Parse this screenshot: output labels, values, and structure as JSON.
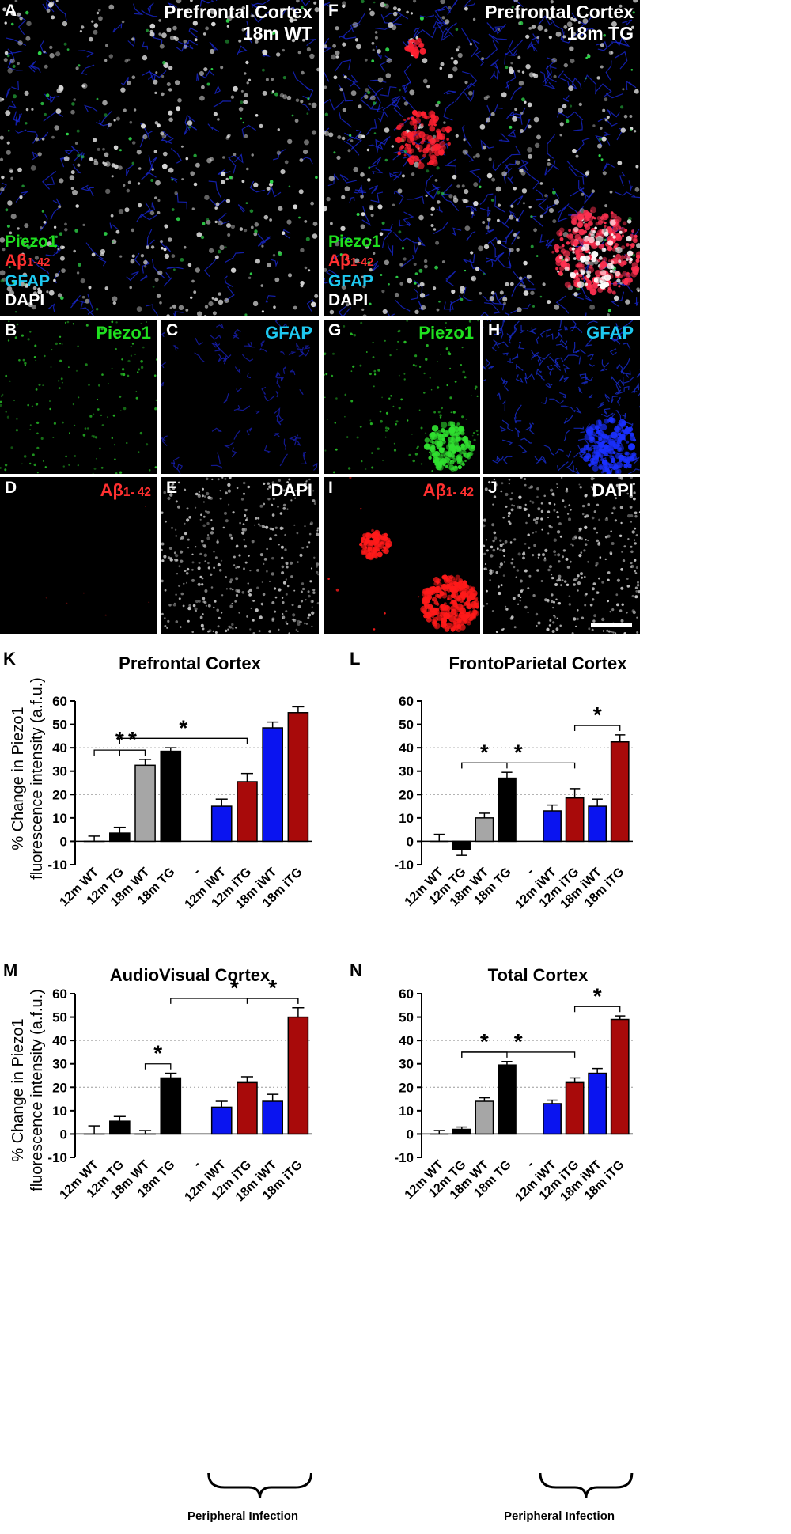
{
  "image_panels": {
    "A": {
      "label": "A",
      "title1": "Prefrontal Cortex",
      "title2": "18m WT",
      "legend": [
        "Piezo1",
        "Aβ",
        "1-42",
        "GFAP",
        "DAPI"
      ]
    },
    "F": {
      "label": "F",
      "title1": "Prefrontal Cortex",
      "title2": "18m TG",
      "legend": [
        "Piezo1",
        "Aβ",
        "1-42",
        "GFAP",
        "DAPI"
      ]
    },
    "B": {
      "label": "B",
      "channel": "Piezo1"
    },
    "C": {
      "label": "C",
      "channel": "GFAP"
    },
    "D": {
      "label": "D",
      "channel_main": "Aβ",
      "channel_sub": "1- 42"
    },
    "E": {
      "label": "E",
      "channel": "DAPI"
    },
    "G": {
      "label": "G",
      "channel": "Piezo1"
    },
    "H": {
      "label": "H",
      "channel": "GFAP"
    },
    "I": {
      "label": "I",
      "channel_main": "Aβ",
      "channel_sub": "1- 42"
    },
    "J": {
      "label": "J",
      "channel": "DAPI"
    }
  },
  "colors": {
    "wt": "#a6a6a6",
    "tg": "#000000",
    "iwt": "#0a14f0",
    "itg": "#a80a0a",
    "piezo": "#1fe01f",
    "abeta": "#ff3030",
    "gfap": "#1ec8f0",
    "dapi": "#ffffff"
  },
  "y_axis_label_line1": "% Change in Piezo1",
  "y_axis_label_line2": "fluorescence intensity (a.f.u.)",
  "peripheral_infection": "Peripheral Infection",
  "chart_data": [
    {
      "panel": "K",
      "title": "Prefrontal Cortex",
      "type": "bar",
      "categories": [
        "12m WT",
        "12m TG",
        "18m WT",
        "18m TG",
        "-",
        "12m iWT",
        "12m iTG",
        "18m iWT",
        "18m iTG"
      ],
      "values": [
        0,
        3.5,
        32.5,
        38.5,
        null,
        15,
        25.5,
        48.5,
        55
      ],
      "errors": [
        2.2,
        2.5,
        2.5,
        1.5,
        null,
        3,
        3.5,
        2.5,
        2.5
      ],
      "ylim": [
        -10,
        60
      ],
      "yticks": [
        -10,
        0,
        10,
        20,
        30,
        40,
        50,
        60
      ],
      "grid": "dotted at 20 and 40",
      "significance": [
        {
          "from": "12m WT",
          "to": "18m WT",
          "label": "*"
        },
        {
          "from": "12m TG",
          "to": "18m WT",
          "label": "*"
        },
        {
          "from": "12m TG",
          "to": "12m iTG",
          "label": "*"
        }
      ]
    },
    {
      "panel": "L",
      "title": "FrontoParietal Cortex",
      "type": "bar",
      "categories": [
        "12m WT",
        "12m TG",
        "18m WT",
        "18m TG",
        "-",
        "12m iWT",
        "12m iTG",
        "18m iWT",
        "18m iTG"
      ],
      "values": [
        0,
        -3.5,
        10,
        27,
        null,
        13,
        18.5,
        15,
        42.5
      ],
      "errors": [
        3,
        2.5,
        2,
        2.5,
        null,
        2.5,
        4,
        3,
        3
      ],
      "ylim": [
        -10,
        60
      ],
      "yticks": [
        -10,
        0,
        10,
        20,
        30,
        40,
        50,
        60
      ],
      "grid": "dotted at 20 and 40",
      "significance": [
        {
          "from": "12m TG",
          "to": "18m TG",
          "label": "*"
        },
        {
          "from": "12m TG",
          "to": "12m iTG",
          "label": "*"
        },
        {
          "from": "12m iTG",
          "to": "18m iTG",
          "label": "*"
        }
      ]
    },
    {
      "panel": "M",
      "title": "AudioVisual Cortex",
      "type": "bar",
      "categories": [
        "12m WT",
        "12m TG",
        "18m WT",
        "18m TG",
        "-",
        "12m iWT",
        "12m iTG",
        "18m iWT",
        "18m iTG"
      ],
      "values": [
        0,
        5.5,
        0,
        24,
        null,
        11.5,
        22,
        14,
        50
      ],
      "errors": [
        3.5,
        2,
        1.5,
        2,
        null,
        2.5,
        2.5,
        3,
        4
      ],
      "ylim": [
        -10,
        60
      ],
      "yticks": [
        -10,
        0,
        10,
        20,
        30,
        40,
        50,
        60
      ],
      "grid": "dotted at 20 and 40",
      "significance": [
        {
          "from": "18m WT",
          "to": "18m TG",
          "label": "*"
        },
        {
          "from": "18m TG",
          "to": "18m iTG",
          "label": "*"
        },
        {
          "from": "12m iTG",
          "to": "18m iTG",
          "label": "*"
        }
      ]
    },
    {
      "panel": "N",
      "title": "Total Cortex",
      "type": "bar",
      "categories": [
        "12m WT",
        "12m TG",
        "18m WT",
        "18m TG",
        "-",
        "12m iWT",
        "12m iTG",
        "18m iWT",
        "18m iTG"
      ],
      "values": [
        0,
        2,
        14,
        29.5,
        null,
        13,
        22,
        26,
        49
      ],
      "errors": [
        1.5,
        1,
        1.5,
        1.5,
        null,
        1.5,
        2,
        2,
        1.5
      ],
      "ylim": [
        -10,
        60
      ],
      "yticks": [
        -10,
        0,
        10,
        20,
        30,
        40,
        50,
        60
      ],
      "grid": "dotted at 20 and 40",
      "significance": [
        {
          "from": "12m TG",
          "to": "18m TG",
          "label": "*"
        },
        {
          "from": "12m TG",
          "to": "12m iTG",
          "label": "*"
        },
        {
          "from": "12m iTG",
          "to": "18m iTG",
          "label": "*"
        }
      ]
    }
  ]
}
